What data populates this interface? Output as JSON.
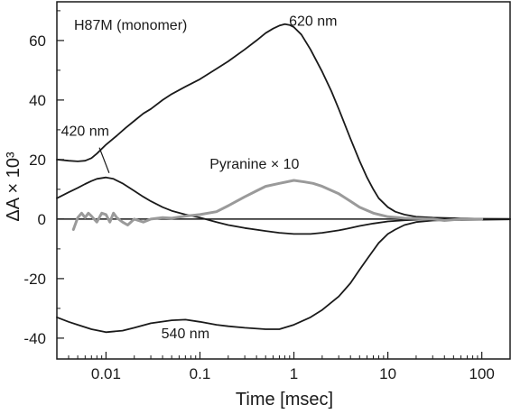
{
  "chart_data": {
    "type": "line",
    "title": "",
    "panel_label": "H87M (monomer)",
    "xlabel": "Time [msec]",
    "ylabel": "ΔA × 10³",
    "xscale": "log",
    "xlim": [
      0.003,
      200
    ],
    "ylim": [
      -47,
      73
    ],
    "x_ticks": [
      0.01,
      0.1,
      1,
      10,
      100
    ],
    "x_tick_labels": [
      "0.01",
      "0.1",
      "1",
      "10",
      "100"
    ],
    "y_ticks": [
      -40,
      -20,
      0,
      20,
      40,
      60
    ],
    "y_tick_labels": [
      "-40",
      "-20",
      "0",
      "20",
      "40",
      "60"
    ],
    "zero_line": true,
    "grid": false,
    "legend": "none",
    "colors": {
      "black_trace": "#1a1a1a",
      "pyranine_trace": "#9a9a9a",
      "axis": "#1a1a1a"
    },
    "series": [
      {
        "name": "620 nm",
        "color": "#1a1a1a",
        "x": [
          0.003,
          0.004,
          0.005,
          0.006,
          0.007,
          0.008,
          0.01,
          0.013,
          0.016,
          0.02,
          0.025,
          0.03,
          0.04,
          0.05,
          0.07,
          0.1,
          0.15,
          0.2,
          0.3,
          0.4,
          0.5,
          0.6,
          0.7,
          0.8,
          0.9,
          1,
          1.2,
          1.5,
          2,
          2.5,
          3,
          4,
          5,
          6,
          7,
          8,
          10,
          12,
          15,
          20,
          30,
          50,
          70,
          100,
          200
        ],
        "y": [
          20,
          19.6,
          19.4,
          19.6,
          20.5,
          22,
          25,
          28,
          30.5,
          33,
          35.5,
          37,
          40,
          42,
          44.5,
          47,
          50.5,
          53,
          57,
          60,
          62.5,
          64,
          65,
          65.5,
          65.2,
          64.5,
          62,
          57,
          49.5,
          43,
          37,
          27,
          19.5,
          14,
          10,
          7,
          4,
          2.5,
          1.5,
          0.8,
          0.5,
          0.3,
          0.2,
          0.1,
          0.1
        ]
      },
      {
        "name": "420 nm",
        "color": "#1a1a1a",
        "x": [
          0.003,
          0.004,
          0.005,
          0.006,
          0.007,
          0.008,
          0.01,
          0.012,
          0.015,
          0.02,
          0.025,
          0.03,
          0.04,
          0.05,
          0.07,
          0.1,
          0.15,
          0.2,
          0.3,
          0.5,
          0.7,
          1,
          1.5,
          2,
          3,
          4,
          5,
          7,
          10,
          15,
          20,
          30,
          50,
          100,
          200
        ],
        "y": [
          7,
          9,
          10.5,
          11.8,
          12.8,
          13.5,
          14,
          13.5,
          12,
          9.5,
          7.5,
          6,
          4,
          2.8,
          1.5,
          0.5,
          -1,
          -2,
          -3,
          -4,
          -4.6,
          -5,
          -5,
          -4.6,
          -3.8,
          -3,
          -2.3,
          -1.5,
          -0.8,
          -0.4,
          -0.2,
          0,
          0.1,
          0.1,
          0
        ]
      },
      {
        "name": "540 nm",
        "color": "#1a1a1a",
        "x": [
          0.003,
          0.004,
          0.005,
          0.007,
          0.01,
          0.015,
          0.02,
          0.03,
          0.05,
          0.07,
          0.1,
          0.15,
          0.2,
          0.3,
          0.5,
          0.7,
          1,
          1.5,
          2,
          3,
          4,
          5,
          6,
          7,
          8,
          10,
          12,
          15,
          20,
          30,
          50,
          100,
          200
        ],
        "y": [
          -33,
          -34.5,
          -35.5,
          -37,
          -38,
          -37.5,
          -36.5,
          -35,
          -34,
          -33.8,
          -34.5,
          -35.5,
          -36,
          -36.5,
          -37,
          -37,
          -35.5,
          -33,
          -30.5,
          -26,
          -21.5,
          -17,
          -13.5,
          -10.5,
          -8,
          -5,
          -3.5,
          -2,
          -1,
          -0.5,
          -0.3,
          -0.2,
          -0.1
        ]
      },
      {
        "name": "Pyranine × 10",
        "color": "#9a9a9a",
        "x": [
          0.0045,
          0.005,
          0.0055,
          0.006,
          0.0065,
          0.007,
          0.008,
          0.009,
          0.01,
          0.011,
          0.012,
          0.013,
          0.015,
          0.017,
          0.02,
          0.025,
          0.03,
          0.04,
          0.05,
          0.07,
          0.1,
          0.15,
          0.2,
          0.3,
          0.4,
          0.5,
          0.7,
          1,
          1.3,
          1.6,
          2,
          3,
          4,
          5,
          7,
          10,
          15,
          20,
          30,
          40,
          60,
          100
        ],
        "y": [
          -3.5,
          0.5,
          2,
          0.5,
          2,
          1,
          -1,
          2,
          1.5,
          -1,
          2,
          0.5,
          -1,
          -2,
          0,
          -1,
          0,
          0.5,
          0.3,
          1,
          1.5,
          2.5,
          4.5,
          7.5,
          9.5,
          11,
          12,
          13,
          12.5,
          12,
          11,
          8.5,
          6,
          4,
          2,
          0.8,
          0.3,
          0.2,
          0,
          -0.5,
          0,
          0
        ]
      }
    ],
    "annotations": [
      {
        "text": "620 nm",
        "x": 1.6,
        "y": 65
      },
      {
        "text": "420 nm",
        "x": 0.006,
        "y": 28
      },
      {
        "text": "540 nm",
        "x": 0.07,
        "y": -40
      },
      {
        "text": "Pyranine × 10",
        "x": 0.38,
        "y": 17
      }
    ]
  }
}
